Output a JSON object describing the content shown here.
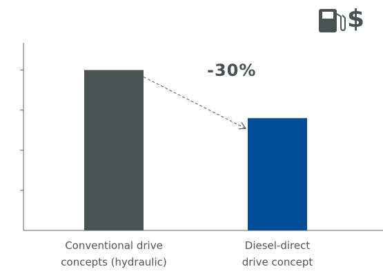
{
  "chart_data": {
    "type": "bar",
    "categories": [
      "Conventional drive\nconcepts (hydraulic)",
      "Diesel-direct\ndrive concept"
    ],
    "values": [
      100,
      70
    ],
    "ylim": [
      0,
      117
    ],
    "y_ticks": [
      25,
      50,
      75,
      100
    ],
    "bar_colors": [
      "#4a5354",
      "#004c97"
    ],
    "annotation": "-30%",
    "grid": false,
    "tick_labels_shown": false,
    "icons": [
      "fuel-pump-icon",
      "dollar-sign-icon"
    ],
    "icon_color": "#4a5354"
  }
}
